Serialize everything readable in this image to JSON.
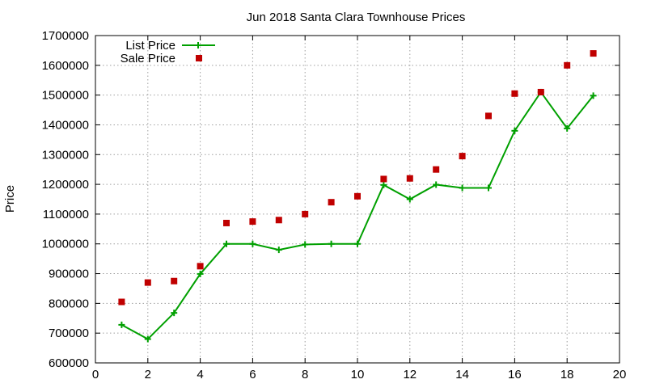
{
  "chart_data": {
    "type": "line",
    "title": "Jun 2018 Santa Clara Townhouse Prices",
    "xlabel": "",
    "ylabel": "Price",
    "xlim": [
      0,
      20
    ],
    "ylim": [
      600000,
      1700000
    ],
    "x_ticks": [
      0,
      2,
      4,
      6,
      8,
      10,
      12,
      14,
      16,
      18,
      20
    ],
    "y_ticks": [
      600000,
      700000,
      800000,
      900000,
      1000000,
      1100000,
      1200000,
      1300000,
      1400000,
      1500000,
      1600000,
      1700000
    ],
    "x_tick_labels": [
      "0",
      "2",
      "4",
      "6",
      "8",
      "10",
      "12",
      "14",
      "16",
      "18",
      "20"
    ],
    "y_tick_labels": [
      "600000",
      "700000",
      "800000",
      "900000",
      "1000000",
      "1100000",
      "1200000",
      "1300000",
      "1400000",
      "1500000",
      "1600000",
      "1700000"
    ],
    "grid": true,
    "legend_position": "top-left",
    "series": [
      {
        "name": "List Price",
        "style": "line+cross",
        "color": "#00a000",
        "x": [
          1,
          2,
          3,
          4,
          5,
          6,
          7,
          8,
          9,
          10,
          11,
          12,
          13,
          14,
          15,
          16,
          17,
          18,
          19
        ],
        "values": [
          728000,
          680000,
          768000,
          899000,
          1000000,
          1000000,
          980000,
          998000,
          1000000,
          1000000,
          1198000,
          1150000,
          1199000,
          1188000,
          1188000,
          1380000,
          1510000,
          1388000,
          1498000
        ]
      },
      {
        "name": "Sale Price",
        "style": "square",
        "color": "#c00000",
        "x": [
          1,
          2,
          3,
          4,
          5,
          6,
          7,
          8,
          9,
          10,
          11,
          12,
          13,
          14,
          15,
          16,
          17,
          18,
          19
        ],
        "values": [
          805000,
          870000,
          875000,
          925000,
          1070000,
          1075000,
          1080000,
          1100000,
          1140000,
          1160000,
          1218000,
          1220000,
          1250000,
          1295000,
          1430000,
          1505000,
          1510000,
          1600000,
          1640000
        ]
      }
    ]
  }
}
